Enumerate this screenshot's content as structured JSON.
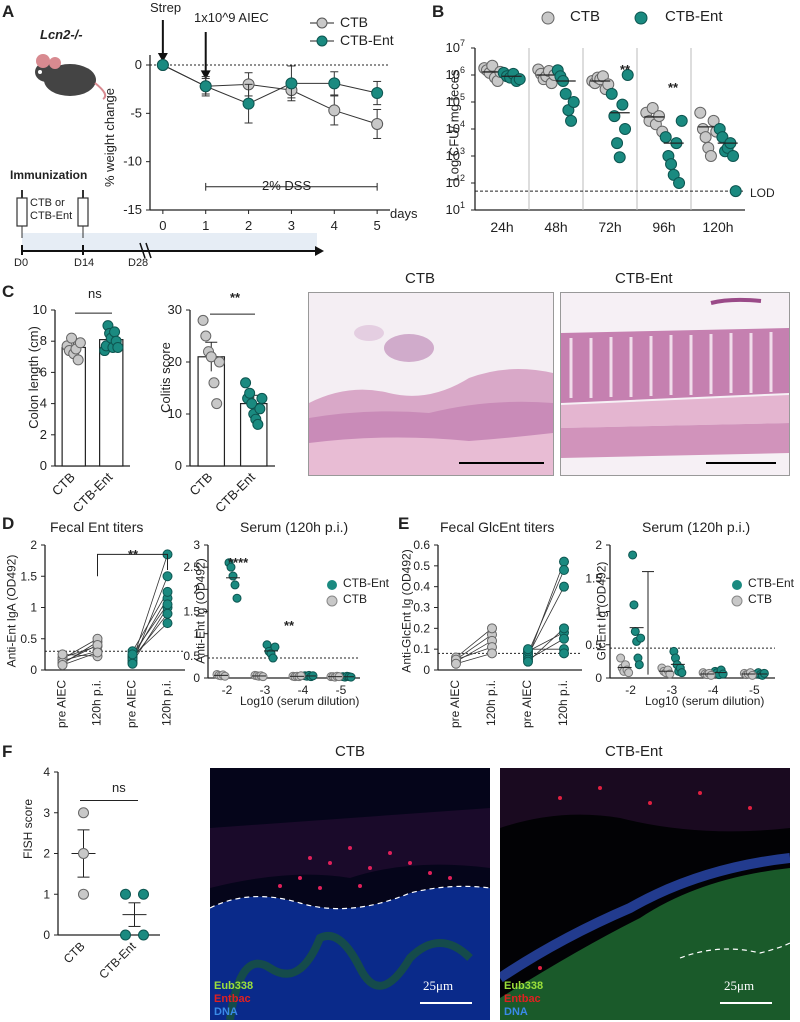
{
  "colors": {
    "ctb": "#c8c8c8",
    "ent": "#1a8a80",
    "axis": "#222222",
    "he_bg": "#e8c8da",
    "fish_bg": "#000000"
  },
  "panelA": {
    "letter": "A",
    "mouse_label": "Lcn2-/-",
    "strep": "Strep",
    "aiec": "1x10^9 AIEC",
    "legend": [
      "CTB",
      "CTB-Ent"
    ],
    "ylabel": "% weight change",
    "xlabel": "days",
    "dss": "2% DSS",
    "immunization": "Immunization",
    "syringe_label_1": "CTB or",
    "syringe_label_2": "CTB-Ent",
    "timeline": [
      "D0",
      "D14",
      "D28"
    ]
  },
  "panelB": {
    "letter": "B",
    "legend": [
      "CTB",
      "CTB-Ent"
    ],
    "ylabel": "Log CFU/ mg  feces",
    "lod": "LOD",
    "sig": [
      "**",
      "**"
    ]
  },
  "panelC": {
    "letter": "C",
    "ylabel1": "Colon length (cm)",
    "ylabel2": "Colitis score",
    "ns": "ns",
    "sig": "**",
    "img1": "CTB",
    "img2": "CTB-Ent"
  },
  "panelD": {
    "letter": "D",
    "title1": "Fecal Ent titers",
    "title2": "Serum (120h p.i.)",
    "ylabel1": "Anti-Ent IgA (OD492)",
    "ylabel2": "Anti-Ent Ig (OD492)",
    "xlabel2": "Log10 (serum dilution)",
    "sig1": "**",
    "sig2": [
      "****",
      "**"
    ],
    "legend": [
      "CTB-Ent",
      "CTB"
    ]
  },
  "panelE": {
    "letter": "E",
    "title1": "Fecal GlcEnt titers",
    "title2": "Serum (120h p.i.)",
    "ylabel1": "Anti-GlcEnt Ig (OD492)",
    "ylabel2": "GlcEnt Ig (OD492)",
    "xlabel2": "Log10 (serum dilution)",
    "legend": [
      "CTB-Ent",
      "CTB"
    ]
  },
  "panelF": {
    "letter": "F",
    "ylabel": "FISH score",
    "ns": "ns",
    "img1": "CTB",
    "img2": "CTB-Ent",
    "stains": [
      "Eub338",
      "Entbac",
      "DNA"
    ],
    "scale": "25μm"
  },
  "chart_data": [
    {
      "id": "A",
      "type": "line",
      "title": "",
      "xlabel": "days",
      "ylabel": "% weight change",
      "x": [
        0,
        1,
        2,
        3,
        4,
        5
      ],
      "xlim": [
        -0.3,
        5.3
      ],
      "ylim": [
        -15,
        0
      ],
      "yticks": [
        0,
        -5,
        -10,
        -15
      ],
      "series": [
        {
          "name": "CTB",
          "values": [
            0,
            -2.2,
            -2.0,
            -2.6,
            -4.7,
            -6.1
          ],
          "err": [
            0,
            0.8,
            1.2,
            0.8,
            1.5,
            1.5
          ]
        },
        {
          "name": "CTB-Ent",
          "values": [
            0,
            -2.2,
            -4.0,
            -1.9,
            -1.9,
            -2.9
          ],
          "err": [
            0,
            1.0,
            2.0,
            1.8,
            1.2,
            1.2
          ]
        }
      ]
    },
    {
      "id": "B",
      "type": "scatter",
      "xlabel": "",
      "ylabel": "Log CFU/ mg  feces",
      "categories": [
        "24h",
        "48h",
        "72h",
        "96h",
        "120h"
      ],
      "ylog": true,
      "ylim": [
        10,
        10000000
      ],
      "lod": 50,
      "series": [
        {
          "name": "CTB",
          "points": [
            [
              1800000,
              1500000,
              1200000,
              2200000,
              800000,
              600000,
              1300000
            ],
            [
              1600000,
              1100000,
              700000,
              900000,
              1400000,
              500000,
              1000000
            ],
            [
              600000,
              500000,
              800000,
              700000,
              900000,
              300000,
              450000
            ],
            [
              40000,
              20000,
              60000,
              15000,
              30000,
              8000
            ],
            [
              40000,
              10000,
              5000,
              2000,
              1000,
              20000,
              8000
            ]
          ],
          "mean": [
            1300000,
            1000000,
            600000,
            28000,
            12000
          ]
        },
        {
          "name": "CTB-Ent",
          "points": [
            [
              1200000,
              900000,
              800000,
              1100000,
              600000,
              700000
            ],
            [
              1500000,
              900000,
              600000,
              200000,
              50000,
              20000,
              100000
            ],
            [
              200000,
              30000,
              3000,
              900,
              80000,
              10000,
              1000000
            ],
            [
              5000,
              1000,
              500,
              200,
              3000,
              100,
              20000
            ],
            [
              10000,
              5000,
              1500,
              2000,
              3000,
              1000,
              50
            ]
          ],
          "mean": [
            900000,
            600000,
            40000,
            3000,
            3000
          ]
        }
      ]
    },
    {
      "id": "C1",
      "type": "bar",
      "ylabel": "Colon length (cm)",
      "categories": [
        "CTB",
        "CTB-Ent"
      ],
      "values": [
        7.6,
        8.1
      ],
      "err": [
        0.35,
        0.35
      ],
      "ylim": [
        0,
        10
      ],
      "points": [
        [
          7.7,
          7.4,
          8.2,
          7.2,
          7.5,
          6.8,
          7.9
        ],
        [
          7.4,
          7.7,
          9.0,
          8.5,
          8.2,
          7.6,
          8.6,
          8.0,
          7.6
        ]
      ]
    },
    {
      "id": "C2",
      "type": "bar",
      "ylabel": "Colitis score",
      "categories": [
        "CTB",
        "CTB-Ent"
      ],
      "values": [
        21,
        12
      ],
      "err": [
        2.8,
        1.6
      ],
      "ylim": [
        0,
        30
      ],
      "points": [
        [
          28,
          25,
          22,
          21,
          16,
          12,
          20
        ],
        [
          16,
          13,
          14,
          12,
          10,
          9,
          8,
          11,
          13
        ]
      ]
    },
    {
      "id": "D1",
      "type": "scatter",
      "ylabel": "Anti-Ent IgA (OD492)",
      "categories": [
        "pre AIEC",
        "120h p.i.",
        "pre AIEC",
        "120h p.i."
      ],
      "ylim": [
        0,
        2.0
      ],
      "dotted": 0.3,
      "points": [
        [
          0.1,
          0.15,
          0.2,
          0.18,
          0.12,
          0.25,
          0.08
        ],
        [
          0.45,
          0.3,
          0.38,
          0.5,
          0.4,
          0.22,
          0.28
        ],
        [
          0.15,
          0.2,
          0.22,
          0.12,
          0.3,
          0.18,
          0.25,
          0.1
        ],
        [
          1.85,
          1.15,
          0.75,
          1.0,
          1.25,
          0.9,
          1.05,
          1.5
        ]
      ]
    },
    {
      "id": "D2",
      "type": "scatter",
      "ylabel": "Anti-Ent Ig (OD492)",
      "xlabel": "Log10 (serum dilution)",
      "categories": [
        "-2",
        "-3",
        "-4",
        "-5"
      ],
      "ylim": [
        0,
        3.0
      ],
      "dotted": 0.45,
      "series": [
        {
          "name": "CTB-Ent",
          "points": [
            [
              2.6,
              2.5,
              2.3,
              2.1,
              1.8
            ],
            [
              0.75,
              0.6,
              0.55,
              0.45,
              0.7
            ],
            [
              0.05,
              0.04,
              0.06,
              0.03,
              0.05
            ],
            [
              0.03,
              0.02,
              0.04,
              0.03,
              0.02
            ]
          ]
        },
        {
          "name": "CTB",
          "points": [
            [
              0.08,
              0.06,
              0.05,
              0.07,
              0.04
            ],
            [
              0.06,
              0.05,
              0.04,
              0.05,
              0.03
            ],
            [
              0.04,
              0.03,
              0.04,
              0.03,
              0.05
            ],
            [
              0.03,
              0.03,
              0.02,
              0.04,
              0.03
            ]
          ]
        }
      ]
    },
    {
      "id": "E1",
      "type": "scatter",
      "ylabel": "Anti-GlcEnt Ig (OD492)",
      "categories": [
        "pre AIEC",
        "120h p.i.",
        "pre AIEC",
        "120h p.i."
      ],
      "ylim": [
        0,
        0.6
      ],
      "dotted": 0.08,
      "points": [
        [
          0.05,
          0.04,
          0.06,
          0.05,
          0.03
        ],
        [
          0.17,
          0.14,
          0.2,
          0.11,
          0.08
        ],
        [
          0.06,
          0.08,
          0.07,
          0.09,
          0.05,
          0.1,
          0.04
        ],
        [
          0.52,
          0.48,
          0.4,
          0.18,
          0.15,
          0.1,
          0.2,
          0.08
        ]
      ]
    },
    {
      "id": "E2",
      "type": "scatter",
      "ylabel": "GlcEnt Ig (OD492)",
      "xlabel": "Log10 (serum dilution)",
      "categories": [
        "-2",
        "-3",
        "-4",
        "-5"
      ],
      "ylim": [
        0,
        2.0
      ],
      "dotted": 0.45,
      "series": [
        {
          "name": "CTB-Ent",
          "points": [
            [
              1.85,
              1.1,
              0.7,
              0.55,
              0.3,
              0.2,
              0.6
            ],
            [
              0.4,
              0.3,
              0.2,
              0.1,
              0.15,
              0.08
            ],
            [
              0.1,
              0.08,
              0.05,
              0.12,
              0.06
            ],
            [
              0.06,
              0.08,
              0.05,
              0.04,
              0.07
            ]
          ]
        },
        {
          "name": "CTB",
          "points": [
            [
              0.3,
              0.15,
              0.1,
              0.2,
              0.12,
              0.08
            ],
            [
              0.15,
              0.1,
              0.08,
              0.12,
              0.06
            ],
            [
              0.08,
              0.06,
              0.05,
              0.07,
              0.04
            ],
            [
              0.07,
              0.05,
              0.06,
              0.08,
              0.04
            ]
          ]
        }
      ]
    },
    {
      "id": "F",
      "type": "scatter",
      "ylabel": "FISH score",
      "categories": [
        "CTB",
        "CTB-Ent"
      ],
      "ylim": [
        0,
        4
      ],
      "series": [
        {
          "name": "CTB",
          "points": [
            3,
            2,
            1
          ],
          "mean": 2.0,
          "err": 0.58
        },
        {
          "name": "CTB-Ent",
          "points": [
            1,
            1,
            0,
            0
          ],
          "mean": 0.5,
          "err": 0.29
        }
      ]
    }
  ]
}
